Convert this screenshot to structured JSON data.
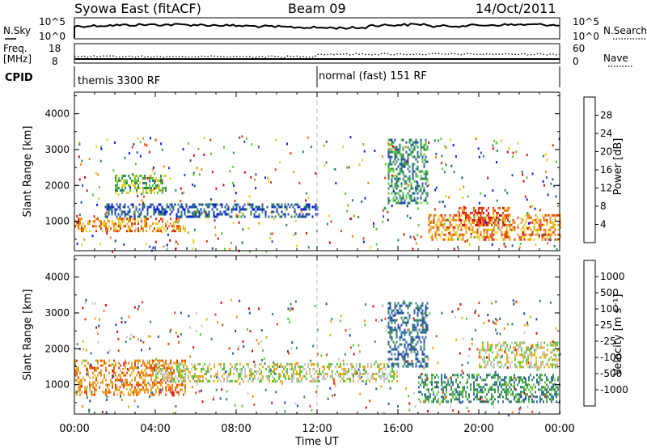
{
  "header": {
    "site": "Syowa East (fitACF)",
    "beam": "Beam 09",
    "date": "14/Oct/2011"
  },
  "top_panels": {
    "nsky_label": "N.Sky",
    "nsky_ticks": [
      "10^5",
      "10^0"
    ],
    "nsearch_label": "N.Search",
    "nsearch_ticks": [
      "10^5",
      "10^0"
    ],
    "freq_label_1": "Freq.",
    "freq_label_2": "[MHz]",
    "freq_ticks": [
      "18",
      "8"
    ],
    "nave_label": "Nave",
    "nave_ticks": [
      "60",
      "0"
    ],
    "cpid_label": "CPID",
    "cpid_segments": [
      {
        "label": "themis 3300 RF",
        "start_hour": 0
      },
      {
        "label": "normal (fast) 151 RF",
        "start_hour": 12
      }
    ]
  },
  "x_axis": {
    "label": "Time UT",
    "ticks": [
      "00:00",
      "04:00",
      "08:00",
      "12:00",
      "16:00",
      "20:00",
      "00:00"
    ],
    "range_hours": [
      0,
      24
    ]
  },
  "chart_data": [
    {
      "type": "heatmap",
      "ylabel": "Slant Range [km]",
      "yticks": [
        "1000",
        "2000",
        "3000",
        "4000"
      ],
      "ylim": [
        180,
        4600
      ],
      "colorbar_label": "Power [dB]",
      "colorbar_ticks": [
        "4",
        "8",
        "12",
        "16",
        "20",
        "24",
        "28"
      ],
      "colorbar_colors": [
        "#0a1ee6",
        "#2850a8",
        "#2e8a5a",
        "#5cc83c",
        "#e8d020",
        "#f08c18",
        "#e03c14",
        "#d41010"
      ],
      "series": [
        {
          "name": "",
          "hour_range": [
            0,
            5.5
          ],
          "range_km": [
            700,
            1100
          ],
          "level": 5
        },
        {
          "name": "",
          "hour_range": [
            1.5,
            12
          ],
          "range_km": [
            1100,
            1500
          ],
          "level": 1
        },
        {
          "name": "",
          "hour_range": [
            2,
            4.5
          ],
          "range_km": [
            1800,
            2300
          ],
          "level": 3
        },
        {
          "name": "",
          "hour_range": [
            15.5,
            17.5
          ],
          "range_km": [
            1500,
            3300
          ],
          "level": 2
        },
        {
          "name": "",
          "hour_range": [
            17.5,
            24
          ],
          "range_km": [
            500,
            1200
          ],
          "level": 5
        },
        {
          "name": "",
          "hour_range": [
            19,
            21.5
          ],
          "range_km": [
            900,
            1400
          ],
          "level": 6
        }
      ]
    },
    {
      "type": "heatmap",
      "ylabel": "Slant Range [km]",
      "yticks": [
        "1000",
        "2000",
        "3000",
        "4000"
      ],
      "ylim": [
        180,
        4600
      ],
      "colorbar_label": "Velocity [m s⁻¹]",
      "colorbar_ticks": [
        "1000",
        "500",
        "100",
        "25",
        "-25",
        "-100",
        "-500",
        "-1000"
      ],
      "colorbar_colors": [
        "#2848b8",
        "#2e6e96",
        "#3c8a5a",
        "#5cc83c",
        "#c8c8c8",
        "#e8b020",
        "#f08c18",
        "#e84814",
        "#d41010"
      ],
      "series": [
        {
          "name": "",
          "hour_range": [
            0,
            5.5
          ],
          "range_km": [
            700,
            1700
          ],
          "level": 6
        },
        {
          "name": "",
          "hour_range": [
            4,
            16
          ],
          "range_km": [
            1100,
            1600
          ],
          "level": 4
        },
        {
          "name": "",
          "hour_range": [
            15.5,
            17.5
          ],
          "range_km": [
            1500,
            3300
          ],
          "level": 1
        },
        {
          "name": "",
          "hour_range": [
            17,
            24
          ],
          "range_km": [
            500,
            1300
          ],
          "level": 2
        },
        {
          "name": "",
          "hour_range": [
            20,
            24
          ],
          "range_km": [
            1500,
            2200
          ],
          "level": 4
        }
      ]
    }
  ]
}
